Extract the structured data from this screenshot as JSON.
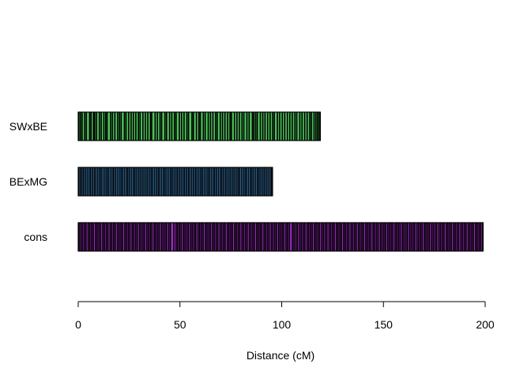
{
  "chart_data": {
    "type": "genetic-linkage-map",
    "xlabel": "Distance (cM)",
    "xlim": [
      0,
      200
    ],
    "x_ticks": [
      0,
      50,
      100,
      150,
      200
    ],
    "colors": {
      "SWxBE": "#4cc25a",
      "BExMG": "#4a97d8",
      "cons": "#9a2bbd",
      "marker": "#000000",
      "outline": "#000000"
    },
    "series": [
      {
        "name": "SWxBE",
        "color": "#4cc25a",
        "length": 119,
        "markers": [
          0.3,
          1.1,
          1.9,
          3.2,
          4.0,
          5.6,
          6.3,
          7.5,
          8.1,
          9.0,
          10.4,
          11.3,
          12.6,
          13.5,
          14.2,
          15.9,
          16.8,
          18.0,
          19.4,
          20.3,
          21.1,
          22.7,
          23.5,
          24.8,
          26.0,
          27.1,
          28.3,
          29.6,
          30.4,
          31.8,
          33.0,
          34.2,
          35.5,
          36.1,
          37.8,
          38.9,
          40.2,
          41.0,
          42.6,
          43.4,
          44.9,
          46.0,
          47.3,
          48.1,
          49.7,
          50.8,
          52.0,
          53.4,
          54.2,
          55.9,
          56.6,
          58.1,
          59.3,
          60.0,
          61.5,
          62.4,
          63.9,
          65.0,
          66.2,
          67.5,
          68.3,
          69.8,
          70.9,
          72.1,
          73.4,
          74.6,
          75.3,
          76.8,
          78.0,
          79.2,
          80.5,
          81.4,
          82.9,
          84.0,
          85.6,
          86.3,
          87.2,
          88.0,
          89.5,
          90.7,
          91.8,
          93.1,
          94.3,
          95.6,
          96.4,
          97.9,
          99.0,
          100.3,
          101.5,
          102.8,
          104.0,
          105.2,
          106.5,
          107.4,
          108.9,
          110.0,
          111.3,
          112.5,
          113.8,
          114.6,
          115.9,
          116.8,
          117.6,
          118.4
        ]
      },
      {
        "name": "BExMG",
        "color": "#4a97d8",
        "length": 95.5,
        "markers": [
          0.2,
          1.0,
          1.8,
          2.6,
          3.5,
          4.4,
          5.3,
          6.1,
          7.0,
          7.9,
          8.7,
          9.6,
          10.5,
          11.3,
          12.2,
          13.1,
          14.0,
          14.8,
          15.7,
          16.6,
          17.4,
          18.3,
          19.2,
          20.1,
          21.0,
          21.8,
          22.7,
          23.6,
          24.4,
          25.3,
          26.2,
          27.1,
          27.9,
          28.8,
          29.7,
          30.5,
          31.4,
          32.3,
          33.2,
          34.0,
          34.9,
          35.8,
          36.6,
          37.5,
          38.4,
          39.3,
          40.1,
          41.0,
          41.9,
          42.7,
          43.6,
          44.5,
          45.4,
          46.2,
          47.1,
          48.0,
          48.8,
          49.7,
          50.6,
          51.5,
          52.3,
          53.2,
          54.1,
          54.9,
          55.8,
          56.7,
          57.6,
          58.4,
          59.3,
          60.2,
          61.0,
          61.9,
          62.8,
          63.7,
          64.5,
          65.4,
          66.3,
          67.1,
          68.0,
          68.9,
          69.8,
          70.6,
          71.5,
          72.4,
          73.2,
          74.1,
          75.0,
          75.9,
          76.7,
          77.6,
          78.5,
          79.3,
          80.2,
          81.1,
          82.0,
          82.8,
          83.7,
          84.6,
          85.4,
          86.3,
          87.2,
          88.1,
          88.9,
          89.8,
          90.7,
          91.5,
          92.4,
          93.3,
          94.2,
          95.0
        ]
      },
      {
        "name": "cons",
        "color": "#9a2bbd",
        "length": 199,
        "markers": [
          0.4,
          1.3,
          2.1,
          3.0,
          3.8,
          4.9,
          5.7,
          6.6,
          7.4,
          8.5,
          9.3,
          10.2,
          11.0,
          12.1,
          12.9,
          13.8,
          14.6,
          15.7,
          16.5,
          17.4,
          18.2,
          19.3,
          20.1,
          21.0,
          21.8,
          22.9,
          23.7,
          24.6,
          25.4,
          26.5,
          27.3,
          28.2,
          29.0,
          30.1,
          30.9,
          31.8,
          32.6,
          33.7,
          34.5,
          35.4,
          36.2,
          37.3,
          38.1,
          39.0,
          39.8,
          40.9,
          41.7,
          42.6,
          43.4,
          44.5,
          45.3,
          47.0,
          48.1,
          48.9,
          49.8,
          50.6,
          51.7,
          52.5,
          53.4,
          54.2,
          55.3,
          56.1,
          57.0,
          57.8,
          58.9,
          59.7,
          60.6,
          61.4,
          62.5,
          63.3,
          64.2,
          65.0,
          66.1,
          66.9,
          67.8,
          68.6,
          69.7,
          70.5,
          71.4,
          72.2,
          73.3,
          74.1,
          75.0,
          75.8,
          76.9,
          77.7,
          78.6,
          79.4,
          80.5,
          81.3,
          82.2,
          83.0,
          84.1,
          84.9,
          85.8,
          86.6,
          87.7,
          88.5,
          89.4,
          90.2,
          91.3,
          92.1,
          93.0,
          93.8,
          94.9,
          95.7,
          96.6,
          97.4,
          98.5,
          99.3,
          100.2,
          101.0,
          102.1,
          102.9,
          103.8,
          105.3,
          106.1,
          107.0,
          107.8,
          108.9,
          109.7,
          110.6,
          111.4,
          112.5,
          113.3,
          114.2,
          115.0,
          116.1,
          116.9,
          117.8,
          118.6,
          119.7,
          120.5,
          121.4,
          122.2,
          123.3,
          124.1,
          125.0,
          125.8,
          126.9,
          127.7,
          128.6,
          129.4,
          130.5,
          131.3,
          132.2,
          133.0,
          134.1,
          134.9,
          135.8,
          136.6,
          137.7,
          138.5,
          139.4,
          140.2,
          141.3,
          142.1,
          143.0,
          143.8,
          144.9,
          145.7,
          146.6,
          147.4,
          148.5,
          149.3,
          150.2,
          151.0,
          152.1,
          152.9,
          153.8,
          154.6,
          155.7,
          156.5,
          157.4,
          158.2,
          159.3,
          160.1,
          161.0,
          161.8,
          162.9,
          163.7,
          164.6,
          165.4,
          166.5,
          167.3,
          168.2,
          169.0,
          170.1,
          170.9,
          171.8,
          172.6,
          173.7,
          174.5,
          175.4,
          176.2,
          177.3,
          178.1,
          179.0,
          179.8,
          180.9,
          181.7,
          182.6,
          183.4,
          184.5,
          185.3,
          186.2,
          187.0,
          188.1,
          188.9,
          189.8,
          190.6,
          191.7,
          192.5,
          193.4,
          194.2,
          195.3,
          196.1,
          197.0,
          197.8,
          198.7
        ]
      }
    ]
  }
}
